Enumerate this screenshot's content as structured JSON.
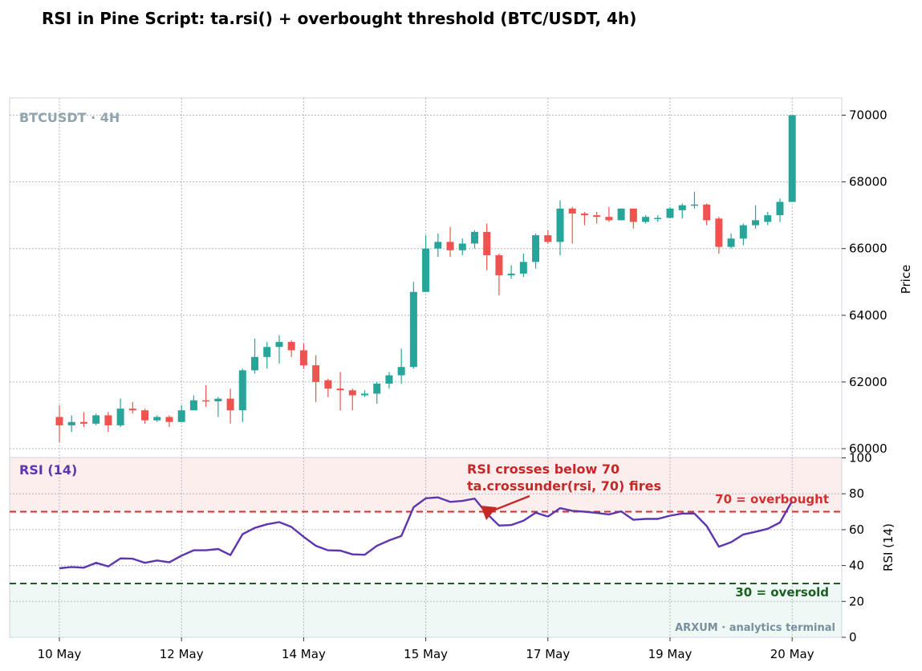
{
  "title": "RSI in Pine Script: ta.rsi() + overbought threshold  (BTC/USDT, 4h)",
  "colors": {
    "up": "#26a69a",
    "down": "#ef5350",
    "rsi_line": "#5e35b1",
    "overbought": "#d32f2f",
    "oversold": "#1b5e20",
    "grid": "#b0b8c4",
    "watermark": "#90a4ae",
    "overbought_zone": "#fdeeee",
    "oversold_zone": "#eef8f5"
  },
  "chart_data": [
    {
      "type": "candlestick",
      "panel": "price",
      "symbol_label": "BTCUSDT · 4H",
      "ylabel": "Price",
      "ylim": [
        59800,
        70500
      ],
      "yticks": [
        60000,
        62000,
        64000,
        66000,
        68000,
        70000
      ],
      "x_tick_labels": [
        "10 May",
        "12 May",
        "14 May",
        "15 May",
        "17 May",
        "19 May",
        "20 May"
      ],
      "x_tick_index": [
        0,
        10,
        20,
        30,
        40,
        50,
        60
      ],
      "grid": true,
      "candles": [
        {
          "o": 60950,
          "h": 61300,
          "l": 60200,
          "c": 60700
        },
        {
          "o": 60700,
          "h": 61000,
          "l": 60500,
          "c": 60800
        },
        {
          "o": 60800,
          "h": 61100,
          "l": 60650,
          "c": 60750
        },
        {
          "o": 60750,
          "h": 61050,
          "l": 60700,
          "c": 61000
        },
        {
          "o": 61000,
          "h": 61100,
          "l": 60500,
          "c": 60700
        },
        {
          "o": 60700,
          "h": 61500,
          "l": 60650,
          "c": 61200
        },
        {
          "o": 61200,
          "h": 61400,
          "l": 61050,
          "c": 61150
        },
        {
          "o": 61150,
          "h": 61200,
          "l": 60750,
          "c": 60850
        },
        {
          "o": 60850,
          "h": 61000,
          "l": 60800,
          "c": 60950
        },
        {
          "o": 60950,
          "h": 61000,
          "l": 60650,
          "c": 60800
        },
        {
          "o": 60800,
          "h": 61300,
          "l": 60800,
          "c": 61150
        },
        {
          "o": 61150,
          "h": 61600,
          "l": 61150,
          "c": 61450
        },
        {
          "o": 61450,
          "h": 61900,
          "l": 61250,
          "c": 61420
        },
        {
          "o": 61420,
          "h": 61550,
          "l": 60950,
          "c": 61500
        },
        {
          "o": 61500,
          "h": 61800,
          "l": 60750,
          "c": 61150
        },
        {
          "o": 61150,
          "h": 62400,
          "l": 60800,
          "c": 62350
        },
        {
          "o": 62350,
          "h": 63300,
          "l": 62250,
          "c": 62750
        },
        {
          "o": 62750,
          "h": 63200,
          "l": 62400,
          "c": 63050
        },
        {
          "o": 63050,
          "h": 63400,
          "l": 62550,
          "c": 63200
        },
        {
          "o": 63200,
          "h": 63250,
          "l": 62750,
          "c": 62950
        },
        {
          "o": 62950,
          "h": 63150,
          "l": 62400,
          "c": 62500
        },
        {
          "o": 62500,
          "h": 62800,
          "l": 61400,
          "c": 62000
        },
        {
          "o": 62050,
          "h": 62100,
          "l": 61550,
          "c": 61800
        },
        {
          "o": 61800,
          "h": 62300,
          "l": 61150,
          "c": 61750
        },
        {
          "o": 61750,
          "h": 61800,
          "l": 61150,
          "c": 61600
        },
        {
          "o": 61600,
          "h": 61750,
          "l": 61550,
          "c": 61650
        },
        {
          "o": 61650,
          "h": 62000,
          "l": 61350,
          "c": 61950
        },
        {
          "o": 61950,
          "h": 62300,
          "l": 61800,
          "c": 62200
        },
        {
          "o": 62200,
          "h": 63000,
          "l": 61950,
          "c": 62450
        },
        {
          "o": 62450,
          "h": 65000,
          "l": 62400,
          "c": 64700
        },
        {
          "o": 64700,
          "h": 66400,
          "l": 64700,
          "c": 66000
        },
        {
          "o": 66000,
          "h": 66450,
          "l": 65750,
          "c": 66200
        },
        {
          "o": 66200,
          "h": 66650,
          "l": 65750,
          "c": 65950
        },
        {
          "o": 65950,
          "h": 66300,
          "l": 65800,
          "c": 66150
        },
        {
          "o": 66150,
          "h": 66550,
          "l": 66000,
          "c": 66500
        },
        {
          "o": 66500,
          "h": 66750,
          "l": 65350,
          "c": 65800
        },
        {
          "o": 65800,
          "h": 65850,
          "l": 64600,
          "c": 65200
        },
        {
          "o": 65200,
          "h": 65500,
          "l": 65100,
          "c": 65250
        },
        {
          "o": 65250,
          "h": 65850,
          "l": 65150,
          "c": 65600
        },
        {
          "o": 65600,
          "h": 66450,
          "l": 65400,
          "c": 66400
        },
        {
          "o": 66400,
          "h": 66550,
          "l": 66150,
          "c": 66200
        },
        {
          "o": 66200,
          "h": 67450,
          "l": 65800,
          "c": 67200
        },
        {
          "o": 67200,
          "h": 67250,
          "l": 66150,
          "c": 67050
        },
        {
          "o": 67050,
          "h": 67100,
          "l": 66700,
          "c": 67000
        },
        {
          "o": 67000,
          "h": 67100,
          "l": 66750,
          "c": 66950
        },
        {
          "o": 66950,
          "h": 67250,
          "l": 66800,
          "c": 66850
        },
        {
          "o": 66850,
          "h": 67200,
          "l": 66850,
          "c": 67200
        },
        {
          "o": 67200,
          "h": 67200,
          "l": 66600,
          "c": 66800
        },
        {
          "o": 66800,
          "h": 67000,
          "l": 66750,
          "c": 66950
        },
        {
          "o": 66900,
          "h": 67000,
          "l": 66800,
          "c": 66920
        },
        {
          "o": 66920,
          "h": 67250,
          "l": 66900,
          "c": 67200
        },
        {
          "o": 67150,
          "h": 67350,
          "l": 66900,
          "c": 67300
        },
        {
          "o": 67300,
          "h": 67700,
          "l": 67200,
          "c": 67320
        },
        {
          "o": 67320,
          "h": 67350,
          "l": 66700,
          "c": 66850
        },
        {
          "o": 66900,
          "h": 66950,
          "l": 65850,
          "c": 66050
        },
        {
          "o": 66050,
          "h": 66450,
          "l": 66000,
          "c": 66300
        },
        {
          "o": 66300,
          "h": 66750,
          "l": 66100,
          "c": 66700
        },
        {
          "o": 66700,
          "h": 67300,
          "l": 66600,
          "c": 66850
        },
        {
          "o": 66800,
          "h": 67100,
          "l": 66700,
          "c": 67000
        },
        {
          "o": 67000,
          "h": 67500,
          "l": 66800,
          "c": 67400
        },
        {
          "o": 67400,
          "h": 70000,
          "l": 67400,
          "c": 70000
        }
      ]
    },
    {
      "type": "line",
      "panel": "rsi",
      "label": "RSI (14)",
      "ylabel": "RSI (14)",
      "ylim": [
        0,
        100
      ],
      "yticks": [
        0,
        20,
        40,
        60,
        80,
        100
      ],
      "overbought": 70,
      "oversold": 30,
      "overbought_label": "70 = overbought",
      "oversold_label": "30 = oversold",
      "values": [
        38.5,
        39.2,
        38.8,
        41.5,
        39.5,
        44.0,
        43.8,
        41.5,
        42.8,
        41.8,
        45.5,
        48.5,
        48.5,
        49.2,
        45.8,
        57.5,
        61.0,
        63.0,
        64.2,
        61.5,
        56.0,
        51.0,
        48.5,
        48.3,
        46.2,
        46.0,
        51.0,
        54.0,
        56.5,
        72.5,
        77.5,
        78.0,
        75.5,
        76.0,
        77.3,
        69.0,
        62.3,
        62.6,
        65.0,
        69.5,
        67.3,
        72.0,
        70.5,
        70.0,
        69.3,
        68.5,
        70.2,
        65.5,
        66.0,
        66.0,
        67.8,
        69.0,
        69.0,
        62.0,
        50.5,
        53.0,
        57.3,
        58.8,
        60.5,
        64.0,
        76.0
      ],
      "annotation": {
        "line1": "RSI crosses below 70",
        "line2": "ta.crossunder(rsi, 70) fires",
        "x_index": 35,
        "y": 68
      },
      "footer": "ARXUM · analytics terminal"
    }
  ]
}
